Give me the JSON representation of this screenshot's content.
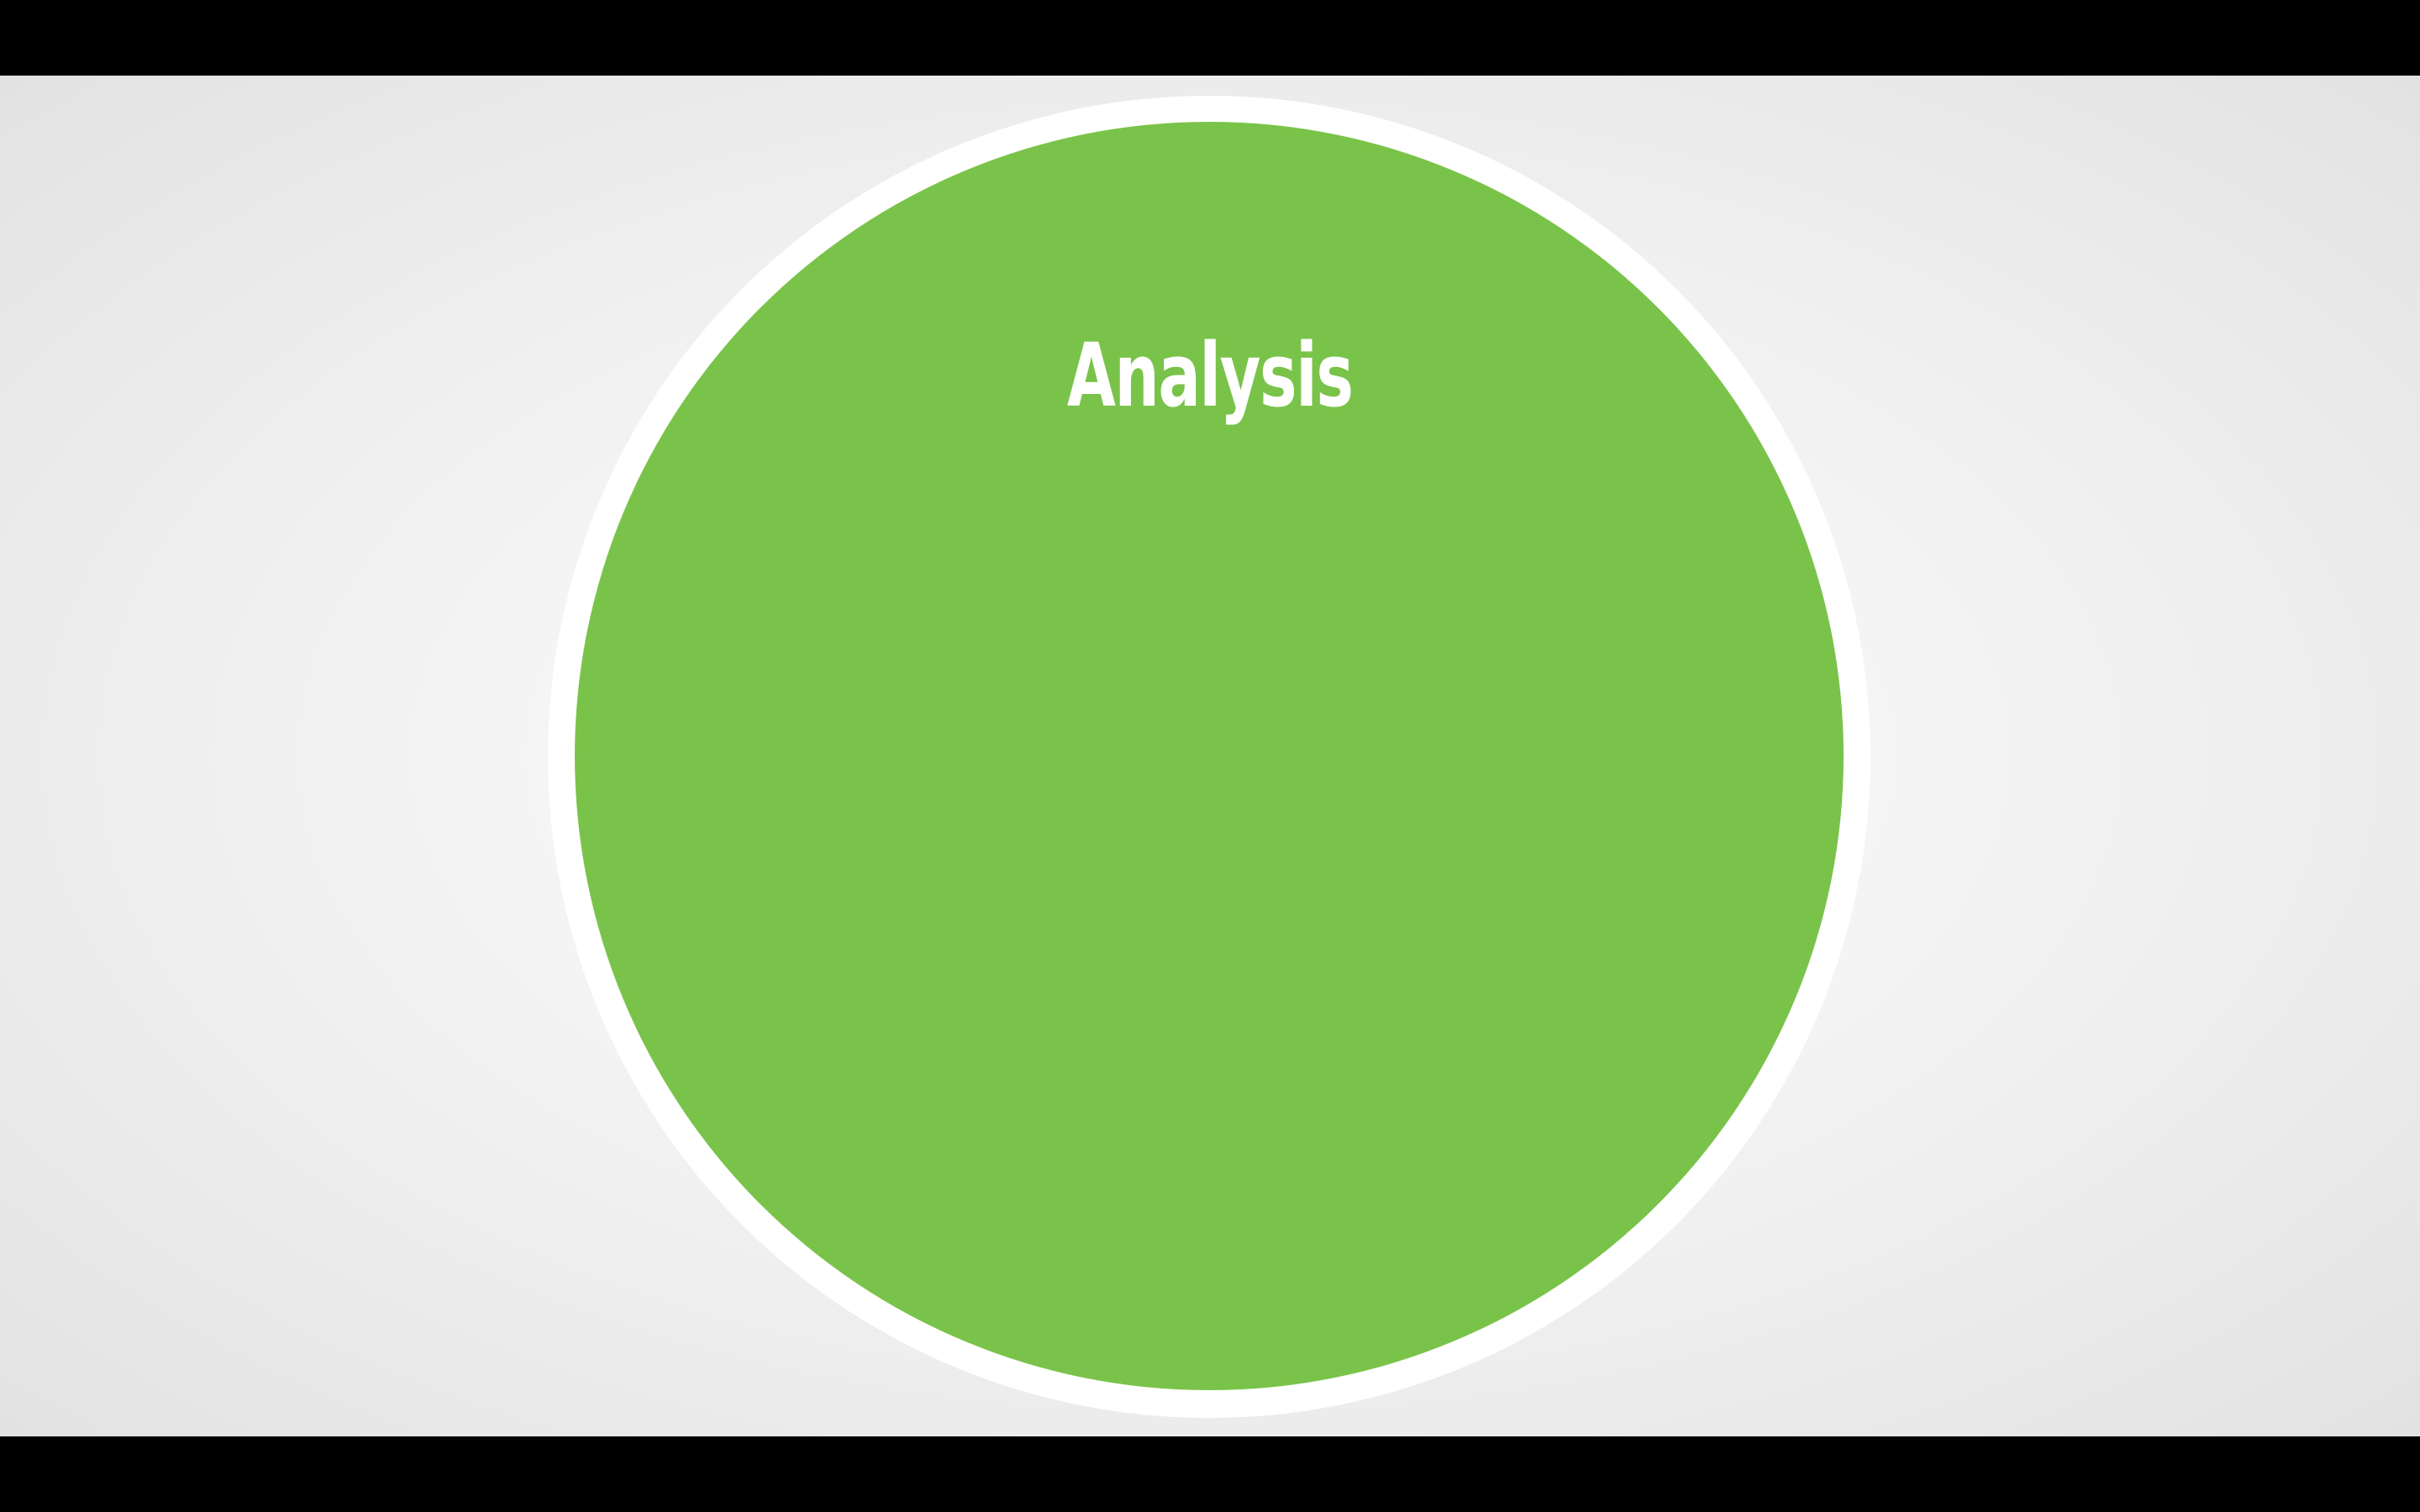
{
  "slide": {
    "title": "Analysis",
    "colors": {
      "circle_fill": "#7ac34a",
      "circle_border": "#ffffff",
      "title_text": "#ffffff",
      "background": "#f0f0f0",
      "letterbox": "#000000"
    }
  }
}
